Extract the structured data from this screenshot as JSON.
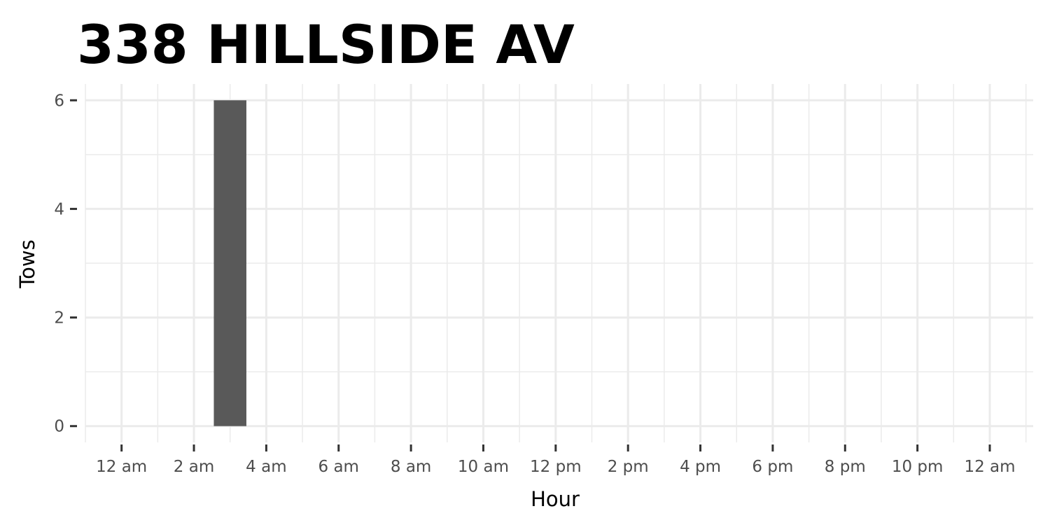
{
  "chart_data": {
    "type": "bar",
    "title": "338 HILLSIDE AV",
    "xlabel": "Hour",
    "ylabel": "Tows",
    "x_tick_labels": [
      "12 am",
      "2 am",
      "4 am",
      "6 am",
      "8 am",
      "10 am",
      "12 pm",
      "2 pm",
      "4 pm",
      "6 pm",
      "8 pm",
      "10 pm",
      "12 am"
    ],
    "x_tick_hours": [
      0,
      2,
      4,
      6,
      8,
      10,
      12,
      14,
      16,
      18,
      20,
      22,
      24
    ],
    "y_ticks": [
      0,
      2,
      4,
      6
    ],
    "xlim": [
      -1,
      25.2
    ],
    "ylim": [
      -0.3,
      6.3
    ],
    "bars": [
      {
        "hour": 3,
        "value": 6
      }
    ],
    "bar_width_hours": 0.9,
    "bar_color": "#595959",
    "grid": true,
    "grid_color": "#ebebeb",
    "legend": "none"
  }
}
